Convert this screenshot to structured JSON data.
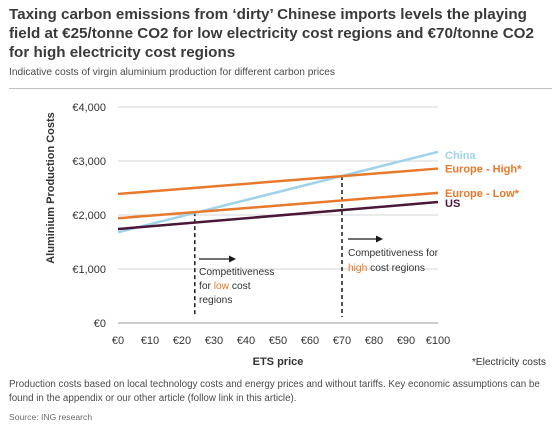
{
  "header": {
    "title": "Taxing carbon emissions from ‘dirty’ Chinese imports levels the playing field at €25/tonne CO2 for low electricity cost regions and €70/tonne CO2 for high electricity cost regions",
    "subtitle": "Indicative costs of virgin aluminium production for different carbon prices"
  },
  "footer": {
    "note": "Production costs based on local technology costs and energy prices and without tariffs. Key economic assumptions can be found in the appendix or our other article (follow link in this article).",
    "source": "Source: ING research"
  },
  "annotations": {
    "low": {
      "line1": "Competitiveness",
      "line2_prefix": "for ",
      "line2_highlight": "low",
      "line2_suffix": " cost",
      "line3": "regions",
      "highlight_color": "#e8792b"
    },
    "high": {
      "line1": "Competitiveness for",
      "line2_highlight": "high",
      "line2_suffix": " cost regions",
      "highlight_color": "#e8792b"
    },
    "legend_note": "*Electricity costs",
    "legend_note_color": "#e8792b"
  },
  "chart_data": {
    "type": "line",
    "xlabel": "ETS price",
    "ylabel": "Aluminium Production Costs",
    "x": [
      0,
      100
    ],
    "xlim": [
      0,
      100
    ],
    "ylim": [
      0,
      4000
    ],
    "x_ticks": [
      "€0",
      "€10",
      "€20",
      "€30",
      "€40",
      "€50",
      "€60",
      "€70",
      "€80",
      "€90",
      "€100"
    ],
    "y_ticks": [
      "€0",
      "€1,000",
      "€2,000",
      "€3,000",
      "€4,000"
    ],
    "grid": "horizontal",
    "series": [
      {
        "name": "China",
        "values": [
          1680,
          3170
        ],
        "color": "#9ed3ea"
      },
      {
        "name": "Europe - High*",
        "values": [
          2390,
          2860
        ],
        "color": "#e8792b"
      },
      {
        "name": "Europe - Low*",
        "values": [
          1940,
          2410
        ],
        "color": "#e8792b"
      },
      {
        "name": "US",
        "values": [
          1740,
          2240
        ],
        "color": "#4a1738"
      }
    ],
    "markers": [
      {
        "x": 24,
        "label_key": "low"
      },
      {
        "x": 70,
        "label_key": "high"
      }
    ]
  }
}
